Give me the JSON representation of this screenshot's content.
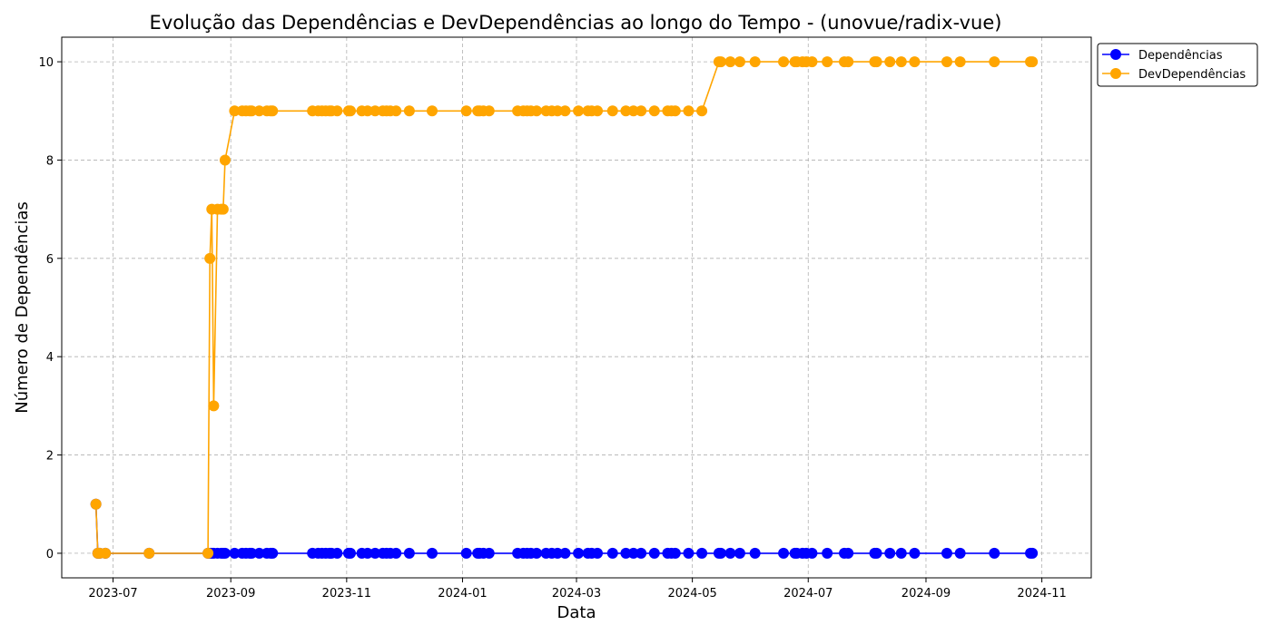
{
  "chart_data": {
    "type": "line",
    "title": "Evolução das Dependências e DevDependências ao longo do Tempo - (unovue/radix-vue)",
    "xlabel": "Data",
    "ylabel": "Número de Dependências",
    "x_tick_labels": [
      "2023-07",
      "2023-09",
      "2023-11",
      "2024-01",
      "2024-03",
      "2024-05",
      "2024-07",
      "2024-09",
      "2024-11"
    ],
    "y_tick_labels": [
      "0",
      "2",
      "4",
      "6",
      "8",
      "10"
    ],
    "xlim": [
      "2023-06-04",
      "2024-11-27"
    ],
    "ylim": [
      -0.5,
      10.5
    ],
    "grid": true,
    "legend_position": "outside-upper-right",
    "x": [
      "2023-06-22",
      "2023-06-23",
      "2023-06-24",
      "2023-06-27",
      "2023-07-20",
      "2023-08-20",
      "2023-08-21",
      "2023-08-22",
      "2023-08-23",
      "2023-08-25",
      "2023-08-27",
      "2023-08-28",
      "2023-08-29",
      "2023-09-03",
      "2023-09-07",
      "2023-09-09",
      "2023-09-11",
      "2023-09-12",
      "2023-09-16",
      "2023-09-20",
      "2023-09-22",
      "2023-09-23",
      "2023-10-14",
      "2023-10-17",
      "2023-10-19",
      "2023-10-21",
      "2023-10-23",
      "2023-10-24",
      "2023-10-27",
      "2023-11-02",
      "2023-11-03",
      "2023-11-09",
      "2023-11-12",
      "2023-11-16",
      "2023-11-20",
      "2023-11-22",
      "2023-11-24",
      "2023-11-27",
      "2023-12-04",
      "2023-12-16",
      "2024-01-03",
      "2024-01-09",
      "2024-01-10",
      "2024-01-12",
      "2024-01-15",
      "2024-01-30",
      "2024-02-02",
      "2024-02-04",
      "2024-02-06",
      "2024-02-09",
      "2024-02-14",
      "2024-02-17",
      "2024-02-20",
      "2024-02-24",
      "2024-03-02",
      "2024-03-07",
      "2024-03-09",
      "2024-03-12",
      "2024-03-20",
      "2024-03-27",
      "2024-03-31",
      "2024-04-04",
      "2024-04-11",
      "2024-04-18",
      "2024-04-20",
      "2024-04-22",
      "2024-04-29",
      "2024-05-06",
      "2024-05-15",
      "2024-05-16",
      "2024-05-21",
      "2024-05-26",
      "2024-06-03",
      "2024-06-18",
      "2024-06-24",
      "2024-06-25",
      "2024-06-28",
      "2024-06-30",
      "2024-07-03",
      "2024-07-11",
      "2024-07-20",
      "2024-07-22",
      "2024-08-05",
      "2024-08-06",
      "2024-08-13",
      "2024-08-19",
      "2024-08-26",
      "2024-09-12",
      "2024-09-19",
      "2024-10-07",
      "2024-10-26",
      "2024-10-27"
    ],
    "series": [
      {
        "name": "Dependências",
        "color": "#0000ff",
        "values": [
          1,
          0,
          0,
          0,
          0,
          0,
          0,
          0,
          0,
          0,
          0,
          0,
          0,
          0,
          0,
          0,
          0,
          0,
          0,
          0,
          0,
          0,
          0,
          0,
          0,
          0,
          0,
          0,
          0,
          0,
          0,
          0,
          0,
          0,
          0,
          0,
          0,
          0,
          0,
          0,
          0,
          0,
          0,
          0,
          0,
          0,
          0,
          0,
          0,
          0,
          0,
          0,
          0,
          0,
          0,
          0,
          0,
          0,
          0,
          0,
          0,
          0,
          0,
          0,
          0,
          0,
          0,
          0,
          0,
          0,
          0,
          0,
          0,
          0,
          0,
          0,
          0,
          0,
          0,
          0,
          0,
          0,
          0,
          0,
          0,
          0,
          0,
          0,
          0,
          0,
          0,
          0
        ]
      },
      {
        "name": "DevDependências",
        "color": "#ffa500",
        "values": [
          1,
          0,
          0,
          0,
          0,
          0,
          6,
          7,
          3,
          7,
          7,
          7,
          8,
          9,
          9,
          9,
          9,
          9,
          9,
          9,
          9,
          9,
          9,
          9,
          9,
          9,
          9,
          9,
          9,
          9,
          9,
          9,
          9,
          9,
          9,
          9,
          9,
          9,
          9,
          9,
          9,
          9,
          9,
          9,
          9,
          9,
          9,
          9,
          9,
          9,
          9,
          9,
          9,
          9,
          9,
          9,
          9,
          9,
          9,
          9,
          9,
          9,
          9,
          9,
          9,
          9,
          9,
          9,
          10,
          10,
          10,
          10,
          10,
          10,
          10,
          10,
          10,
          10,
          10,
          10,
          10,
          10,
          10,
          10,
          10,
          10,
          10,
          10,
          10,
          10,
          10,
          10
        ]
      }
    ]
  }
}
